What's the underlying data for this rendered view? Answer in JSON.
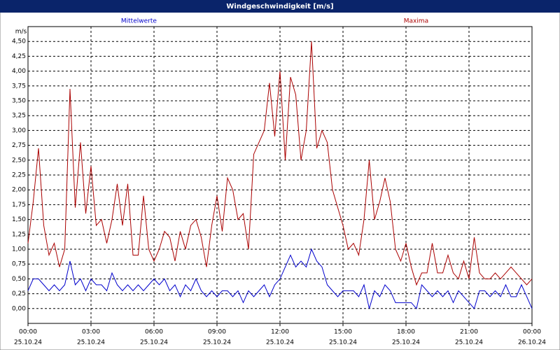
{
  "window_title": "Windgeschwindigkeit [m/s]",
  "chart_data": {
    "type": "line",
    "y_label": "m/s",
    "grid": true,
    "grid_style": "dashed",
    "x": [
      0,
      0.25,
      0.5,
      0.75,
      1,
      1.25,
      1.5,
      1.75,
      2,
      2.25,
      2.5,
      2.75,
      3,
      3.25,
      3.5,
      3.75,
      4,
      4.25,
      4.5,
      4.75,
      5,
      5.25,
      5.5,
      5.75,
      6,
      6.25,
      6.5,
      6.75,
      7,
      7.25,
      7.5,
      7.75,
      8,
      8.25,
      8.5,
      8.75,
      9,
      9.25,
      9.5,
      9.75,
      10,
      10.25,
      10.5,
      10.75,
      11,
      11.25,
      11.5,
      11.75,
      12,
      12.25,
      12.5,
      12.75,
      13,
      13.25,
      13.5,
      13.75,
      14,
      14.25,
      14.5,
      14.75,
      15,
      15.25,
      15.5,
      15.75,
      16,
      16.25,
      16.5,
      16.75,
      17,
      17.25,
      17.5,
      17.75,
      18,
      18.25,
      18.5,
      18.75,
      19,
      19.25,
      19.5,
      19.75,
      20,
      20.25,
      20.5,
      20.75,
      21,
      21.25,
      21.5,
      21.75,
      22,
      22.25,
      22.5,
      22.75,
      23,
      23.25,
      23.5,
      23.75,
      24
    ],
    "series": [
      {
        "name": "Mittelwerte",
        "color": "#0000cc",
        "legend_x": 0.22,
        "values": [
          0.3,
          0.5,
          0.5,
          0.4,
          0.3,
          0.4,
          0.3,
          0.4,
          0.8,
          0.4,
          0.5,
          0.3,
          0.5,
          0.4,
          0.4,
          0.3,
          0.6,
          0.4,
          0.3,
          0.4,
          0.3,
          0.4,
          0.3,
          0.4,
          0.5,
          0.4,
          0.5,
          0.3,
          0.4,
          0.2,
          0.4,
          0.3,
          0.5,
          0.3,
          0.2,
          0.3,
          0.2,
          0.3,
          0.3,
          0.2,
          0.3,
          0.1,
          0.3,
          0.2,
          0.3,
          0.4,
          0.2,
          0.4,
          0.5,
          0.7,
          0.9,
          0.7,
          0.8,
          0.7,
          1.0,
          0.8,
          0.7,
          0.4,
          0.3,
          0.2,
          0.3,
          0.3,
          0.3,
          0.2,
          0.4,
          0.0,
          0.3,
          0.2,
          0.4,
          0.3,
          0.1,
          0.1,
          0.1,
          0.1,
          0.0,
          0.4,
          0.3,
          0.2,
          0.3,
          0.2,
          0.3,
          0.1,
          0.3,
          0.2,
          0.1,
          0.0,
          0.3,
          0.3,
          0.2,
          0.3,
          0.2,
          0.4,
          0.2,
          0.2,
          0.4,
          0.2,
          0.0
        ]
      },
      {
        "name": "Maxima",
        "color": "#aa0000",
        "legend_x": 0.77,
        "values": [
          1.1,
          1.8,
          2.7,
          1.4,
          0.9,
          1.1,
          0.7,
          1.0,
          3.7,
          1.7,
          2.8,
          1.6,
          2.4,
          1.4,
          1.5,
          1.1,
          1.5,
          2.1,
          1.4,
          2.1,
          0.9,
          0.9,
          1.9,
          1.0,
          0.8,
          1.0,
          1.3,
          1.2,
          0.8,
          1.3,
          1.0,
          1.4,
          1.5,
          1.2,
          0.7,
          1.4,
          1.9,
          1.3,
          2.2,
          2.0,
          1.5,
          1.6,
          1.0,
          2.6,
          2.8,
          3.0,
          3.8,
          2.9,
          4.0,
          2.5,
          3.9,
          3.6,
          2.5,
          3.0,
          4.5,
          2.7,
          3.0,
          2.8,
          2.0,
          1.7,
          1.4,
          1.0,
          1.1,
          0.9,
          1.5,
          2.5,
          1.5,
          1.8,
          2.2,
          1.8,
          1.0,
          0.8,
          1.1,
          0.7,
          0.4,
          0.6,
          0.6,
          1.1,
          0.6,
          0.6,
          0.9,
          0.6,
          0.5,
          0.8,
          0.5,
          1.2,
          0.6,
          0.5,
          0.5,
          0.6,
          0.5,
          0.6,
          0.7,
          0.6,
          0.5,
          0.4,
          0.5
        ]
      }
    ],
    "xlim": [
      0,
      24
    ],
    "xticks": [
      {
        "value": 0,
        "label": "00:00"
      },
      {
        "value": 3,
        "label": "03:00"
      },
      {
        "value": 6,
        "label": "06:00"
      },
      {
        "value": 9,
        "label": "09:00"
      },
      {
        "value": 12,
        "label": "12:00"
      },
      {
        "value": 15,
        "label": "15:00"
      },
      {
        "value": 18,
        "label": "18:00"
      },
      {
        "value": 21,
        "label": "21:00"
      },
      {
        "value": 24,
        "label": "00:00"
      }
    ],
    "xtick_dates": [
      "25.10.24",
      "25.10.24",
      "25.10.24",
      "25.10.24",
      "25.10.24",
      "25.10.24",
      "25.10.24",
      "25.10.24",
      "26.10.24"
    ],
    "ylim": [
      -0.25,
      4.75
    ],
    "yticks": [
      {
        "value": 0,
        "label": "0,00"
      },
      {
        "value": 0.25,
        "label": "0,25"
      },
      {
        "value": 0.5,
        "label": "0,50"
      },
      {
        "value": 0.75,
        "label": "0,75"
      },
      {
        "value": 1,
        "label": "1,00"
      },
      {
        "value": 1.25,
        "label": "1,25"
      },
      {
        "value": 1.5,
        "label": "1,50"
      },
      {
        "value": 1.75,
        "label": "1,75"
      },
      {
        "value": 2,
        "label": "2,00"
      },
      {
        "value": 2.25,
        "label": "2,25"
      },
      {
        "value": 2.5,
        "label": "2,50"
      },
      {
        "value": 2.75,
        "label": "2,75"
      },
      {
        "value": 3,
        "label": "3,00"
      },
      {
        "value": 3.25,
        "label": "3,25"
      },
      {
        "value": 3.5,
        "label": "3,50"
      },
      {
        "value": 3.75,
        "label": "3,75"
      },
      {
        "value": 4,
        "label": "4,00"
      },
      {
        "value": 4.25,
        "label": "4,25"
      },
      {
        "value": 4.5,
        "label": "4,50"
      }
    ]
  }
}
